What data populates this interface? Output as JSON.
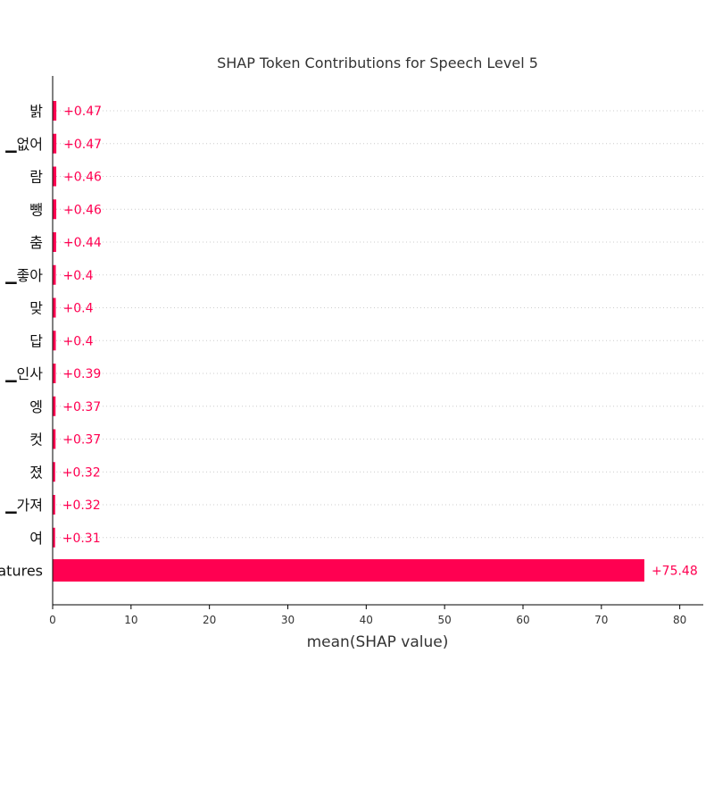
{
  "chart_data": {
    "type": "bar",
    "orientation": "horizontal",
    "title": "SHAP Token Contributions for Speech Level 5",
    "xlabel": "mean(SHAP value)",
    "ylabel": "",
    "categories": [
      "밝",
      "▁없어",
      "람",
      "뺑",
      "춤",
      "▁좋아",
      "맞",
      "답",
      "▁인사",
      "엥",
      "컷",
      "졌",
      "▁가져",
      "여",
      "Sum of other features"
    ],
    "values": [
      0.47,
      0.47,
      0.46,
      0.46,
      0.44,
      0.4,
      0.4,
      0.4,
      0.39,
      0.37,
      0.37,
      0.32,
      0.32,
      0.31,
      75.48
    ],
    "value_labels": [
      "+0.47",
      "+0.47",
      "+0.46",
      "+0.46",
      "+0.44",
      "+0.4",
      "+0.4",
      "+0.4",
      "+0.39",
      "+0.37",
      "+0.37",
      "+0.32",
      "+0.32",
      "+0.31",
      "+75.48"
    ],
    "xlim": [
      0,
      83
    ],
    "xticks": [
      0,
      10,
      20,
      30,
      40,
      50,
      60,
      70,
      80
    ],
    "grid": "horizontal dotted",
    "bar_color": "#ff0051",
    "label_color": "#ff0051"
  }
}
